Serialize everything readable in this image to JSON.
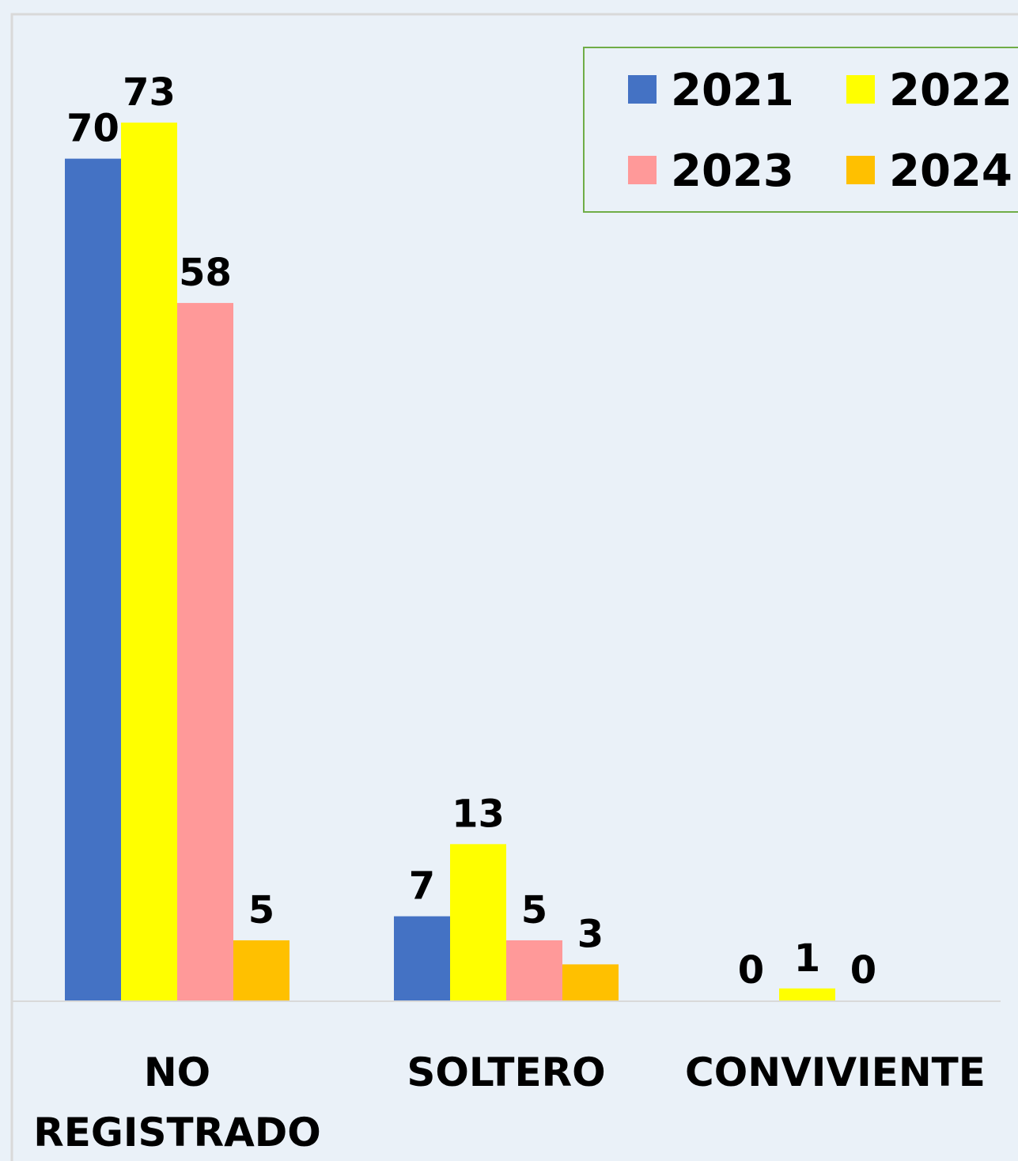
{
  "chart_data": {
    "type": "bar",
    "categories": [
      "NO REGISTRADO",
      "SOLTERO",
      "CONVIVIENTE"
    ],
    "series": [
      {
        "name": "2021",
        "color": "#4472c4",
        "values": [
          70,
          7,
          0
        ]
      },
      {
        "name": "2022",
        "color": "#ffff00",
        "values": [
          73,
          13,
          1
        ]
      },
      {
        "name": "2023",
        "color": "#ff9999",
        "values": [
          58,
          5,
          0
        ]
      },
      {
        "name": "2024",
        "color": "#ffc000",
        "values": [
          5,
          3,
          null
        ]
      }
    ],
    "legend": "top-right"
  }
}
